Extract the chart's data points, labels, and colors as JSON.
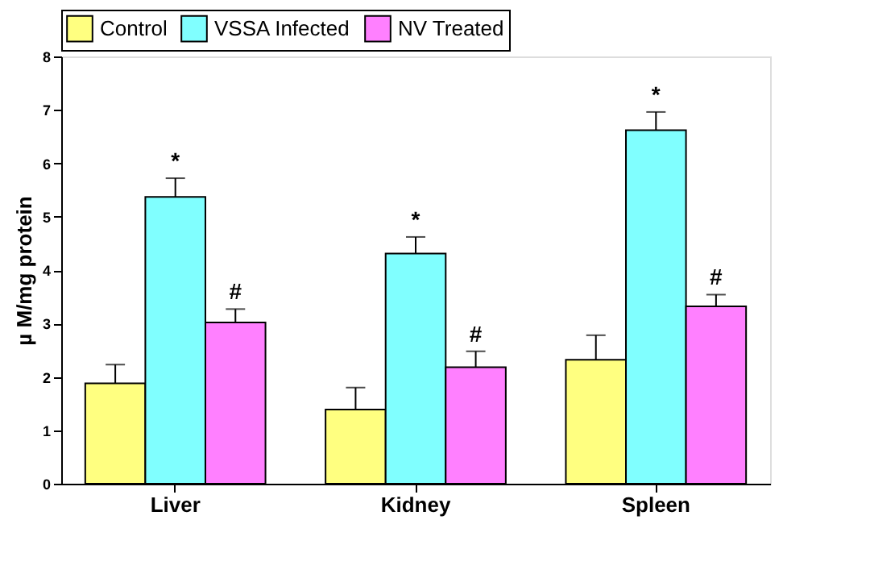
{
  "chart_data": {
    "type": "bar",
    "ylabel": "µ M/mg protein",
    "categories": [
      "Liver",
      "Kidney",
      "Spleen"
    ],
    "series": [
      {
        "name": "Control",
        "color": "#ffff80",
        "values": [
          1.88,
          1.39,
          2.32
        ],
        "errors": [
          0.35,
          0.41,
          0.46
        ]
      },
      {
        "name": "VSSA Infected",
        "color": "#80ffff",
        "values": [
          5.37,
          4.31,
          6.62
        ],
        "errors": [
          0.35,
          0.31,
          0.34
        ],
        "value_labels": [
          "*",
          "*",
          "*"
        ]
      },
      {
        "name": "NV Treated",
        "color": "#ff80ff",
        "values": [
          3.02,
          2.18,
          3.32
        ],
        "errors": [
          0.25,
          0.3,
          0.22
        ],
        "value_labels": [
          "#",
          "#",
          "#"
        ]
      }
    ],
    "ylim": [
      0,
      8
    ],
    "yticks": [
      0,
      1,
      2,
      3,
      4,
      5,
      6,
      7,
      8
    ],
    "grid": false,
    "legend": "top"
  }
}
